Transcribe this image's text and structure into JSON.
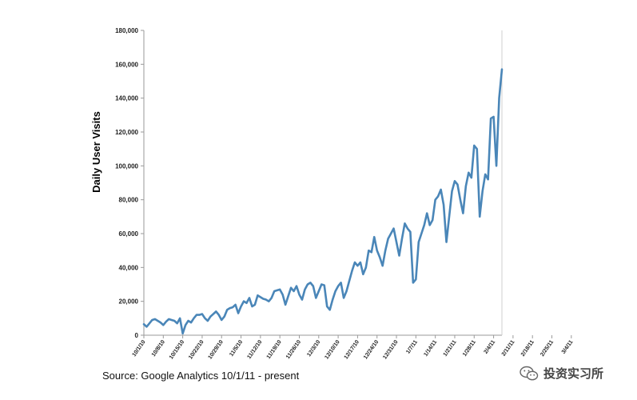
{
  "chart_data": {
    "type": "line",
    "title": "",
    "xlabel": "",
    "ylabel": "Daily User Visits",
    "ylim": [
      0,
      180000
    ],
    "y_ticks": [
      0,
      20000,
      40000,
      60000,
      80000,
      100000,
      120000,
      140000,
      160000,
      180000
    ],
    "y_tick_labels": [
      "0",
      "20,000",
      "40,000",
      "60,000",
      "80,000",
      "100,000",
      "120,000",
      "140,000",
      "160,000",
      "180,000"
    ],
    "x_tick_labels": [
      "10/1/10",
      "10/8/10",
      "10/15/10",
      "10/22/10",
      "10/29/10",
      "11/5/10",
      "11/12/10",
      "11/19/10",
      "11/26/10",
      "12/3/10",
      "12/10/10",
      "12/17/10",
      "12/24/10",
      "12/31/10",
      "1/7/11",
      "1/14/11",
      "1/21/11",
      "1/28/11",
      "2/4/11",
      "2/11/11",
      "2/18/11",
      "2/25/11",
      "3/4/11"
    ],
    "x_tick_day_index": [
      0,
      7,
      14,
      21,
      28,
      35,
      42,
      49,
      56,
      63,
      70,
      77,
      84,
      91,
      98,
      105,
      112,
      119,
      126,
      133,
      140,
      147,
      154
    ],
    "grid": false,
    "line_color": "#4a86b8",
    "series": [
      {
        "name": "Daily User Visits",
        "x_start": "10/1/10",
        "x_step_days": 1,
        "values": [
          6500,
          5000,
          7000,
          9000,
          9500,
          8500,
          7500,
          6000,
          8000,
          9500,
          9000,
          8500,
          7000,
          10000,
          1000,
          6000,
          8500,
          7500,
          10000,
          12000,
          12000,
          12500,
          10000,
          8500,
          11000,
          12500,
          14000,
          12000,
          9000,
          11000,
          15000,
          16000,
          16500,
          18000,
          13000,
          17000,
          20000,
          19000,
          22000,
          17000,
          18000,
          23500,
          22500,
          21500,
          21000,
          20000,
          22000,
          26000,
          26500,
          27000,
          24000,
          18000,
          23000,
          28000,
          26000,
          29000,
          24000,
          21000,
          27000,
          30000,
          31000,
          29000,
          22000,
          26000,
          30000,
          29500,
          17000,
          15000,
          21000,
          26000,
          29000,
          31000,
          22000,
          26000,
          32000,
          38000,
          43000,
          41000,
          43000,
          36000,
          40000,
          50000,
          49000,
          58000,
          50000,
          46000,
          41000,
          50000,
          57000,
          60000,
          63000,
          55000,
          47000,
          57000,
          66000,
          63000,
          61000,
          31000,
          33000,
          55000,
          60000,
          65000,
          72000,
          65000,
          68000,
          80000,
          82000,
          86000,
          77000,
          55000,
          70000,
          85000,
          91000,
          89000,
          80000,
          72000,
          88000,
          96000,
          93000,
          112000,
          110000,
          70000,
          85000,
          95000,
          92000,
          128000,
          129000,
          100000,
          140000,
          157000
        ]
      }
    ]
  },
  "footer": {
    "source": "Source: Google Analytics 10/1/11 - present"
  },
  "watermark": {
    "text": "投资实习所",
    "icon": "wechat-icon"
  }
}
